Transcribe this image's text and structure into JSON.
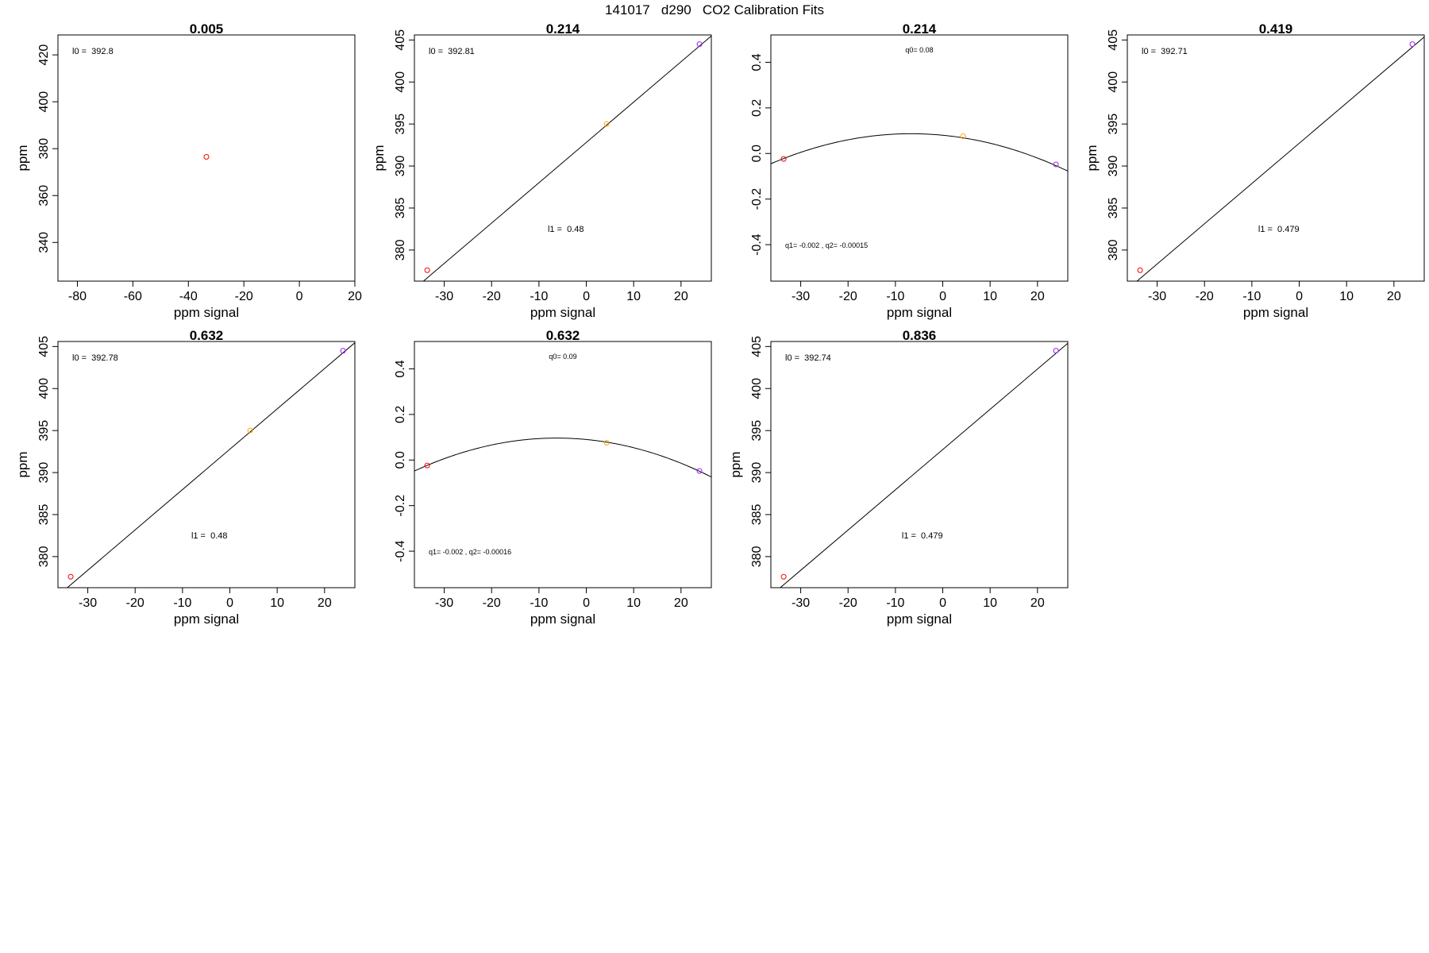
{
  "page_title": "141017   d290   CO2 Calibration Fits",
  "colors": {
    "red": "#ff0000",
    "orange": "#ffa500",
    "purple": "#a020f0",
    "line": "#000000"
  },
  "chart_data": [
    {
      "type": "scatter",
      "title": "0.005",
      "xlabel": "ppm signal",
      "ylabel": "ppm",
      "xlim": [
        -87,
        20
      ],
      "ylim": [
        323.5,
        428.5
      ],
      "xticks": [
        -80,
        -60,
        -40,
        -20,
        0,
        20
      ],
      "yticks": [
        340,
        360,
        380,
        400,
        420
      ],
      "points": [
        {
          "x": -33.5,
          "y": 376.5,
          "color": "red"
        }
      ],
      "fit": null,
      "annotations": [
        {
          "text": "l0 =  392.8",
          "pos": "top-left"
        }
      ]
    },
    {
      "type": "line",
      "title": "0.214",
      "xlabel": "ppm signal",
      "ylabel": "ppm",
      "xlim": [
        -36.3,
        26.4
      ],
      "ylim": [
        376.3,
        405.6
      ],
      "xticks": [
        -30,
        -20,
        -10,
        0,
        10,
        20
      ],
      "yticks": [
        380,
        385,
        390,
        395,
        400,
        405
      ],
      "points": [
        {
          "x": -33.6,
          "y": 377.6,
          "color": "red"
        },
        {
          "x": 4.3,
          "y": 395.0,
          "color": "orange"
        },
        {
          "x": 23.9,
          "y": 404.5,
          "color": "purple"
        }
      ],
      "fit": {
        "kind": "linear",
        "intercept": 392.81,
        "slope": 0.48
      },
      "annotations": [
        {
          "text": "l0 =  392.81",
          "pos": "top-left"
        },
        {
          "text": "l1 =  0.48",
          "pos": "lower-middle"
        }
      ]
    },
    {
      "type": "line",
      "title": "0.214",
      "xlabel": "ppm signal",
      "ylabel": "",
      "xlim": [
        -36.3,
        26.4
      ],
      "ylim": [
        -0.56,
        0.52
      ],
      "xticks": [
        -30,
        -20,
        -10,
        0,
        10,
        20
      ],
      "yticks": [
        -0.4,
        -0.2,
        0.0,
        0.2,
        0.4
      ],
      "ytick_labels": [
        "-0.4",
        "-0.2",
        "0.0",
        "0.2",
        "0.4"
      ],
      "points": [
        {
          "x": -33.6,
          "y": -0.024,
          "color": "red"
        },
        {
          "x": 4.3,
          "y": 0.076,
          "color": "orange"
        },
        {
          "x": 23.9,
          "y": -0.048,
          "color": "purple"
        }
      ],
      "fit": {
        "kind": "quadratic",
        "q0": 0.08,
        "q1": -0.002,
        "q2": -0.00015
      },
      "annotations": [
        {
          "text": "q0= 0.08",
          "pos": "top-middle"
        },
        {
          "text": "q1= -0.002 , q2= -0.00015",
          "pos": "bottom-left"
        }
      ]
    },
    {
      "type": "line",
      "title": "0.419",
      "xlabel": "ppm signal",
      "ylabel": "ppm",
      "xlim": [
        -36.3,
        26.4
      ],
      "ylim": [
        376.3,
        405.6
      ],
      "xticks": [
        -30,
        -20,
        -10,
        0,
        10,
        20
      ],
      "yticks": [
        380,
        385,
        390,
        395,
        400,
        405
      ],
      "points": [
        {
          "x": -33.6,
          "y": 377.6,
          "color": "red"
        },
        {
          "x": 23.9,
          "y": 404.5,
          "color": "purple"
        }
      ],
      "fit": {
        "kind": "linear",
        "intercept": 392.71,
        "slope": 0.479
      },
      "annotations": [
        {
          "text": "l0 =  392.71",
          "pos": "top-left"
        },
        {
          "text": "l1 =  0.479",
          "pos": "lower-middle"
        }
      ]
    },
    {
      "type": "line",
      "title": "0.632",
      "xlabel": "ppm signal",
      "ylabel": "ppm",
      "xlim": [
        -36.3,
        26.4
      ],
      "ylim": [
        376.3,
        405.6
      ],
      "xticks": [
        -30,
        -20,
        -10,
        0,
        10,
        20
      ],
      "yticks": [
        380,
        385,
        390,
        395,
        400,
        405
      ],
      "points": [
        {
          "x": -33.6,
          "y": 377.6,
          "color": "red"
        },
        {
          "x": 4.3,
          "y": 395.0,
          "color": "orange"
        },
        {
          "x": 23.9,
          "y": 404.5,
          "color": "purple"
        }
      ],
      "fit": {
        "kind": "linear",
        "intercept": 392.78,
        "slope": 0.48
      },
      "annotations": [
        {
          "text": "l0 =  392.78",
          "pos": "top-left"
        },
        {
          "text": "l1 =  0.48",
          "pos": "lower-middle"
        }
      ]
    },
    {
      "type": "line",
      "title": "0.632",
      "xlabel": "ppm signal",
      "ylabel": "",
      "xlim": [
        -36.3,
        26.4
      ],
      "ylim": [
        -0.56,
        0.52
      ],
      "xticks": [
        -30,
        -20,
        -10,
        0,
        10,
        20
      ],
      "yticks": [
        -0.4,
        -0.2,
        0.0,
        0.2,
        0.4
      ],
      "ytick_labels": [
        "-0.4",
        "-0.2",
        "0.0",
        "0.2",
        "0.4"
      ],
      "points": [
        {
          "x": -33.6,
          "y": -0.024,
          "color": "red"
        },
        {
          "x": 4.3,
          "y": 0.076,
          "color": "orange"
        },
        {
          "x": 23.9,
          "y": -0.048,
          "color": "purple"
        }
      ],
      "fit": {
        "kind": "quadratic",
        "q0": 0.09,
        "q1": -0.002,
        "q2": -0.00016
      },
      "annotations": [
        {
          "text": "q0= 0.09",
          "pos": "top-middle"
        },
        {
          "text": "q1= -0.002 , q2= -0.00016",
          "pos": "bottom-left"
        }
      ]
    },
    {
      "type": "line",
      "title": "0.836",
      "xlabel": "ppm signal",
      "ylabel": "ppm",
      "xlim": [
        -36.3,
        26.4
      ],
      "ylim": [
        376.3,
        405.6
      ],
      "xticks": [
        -30,
        -20,
        -10,
        0,
        10,
        20
      ],
      "yticks": [
        380,
        385,
        390,
        395,
        400,
        405
      ],
      "points": [
        {
          "x": -33.6,
          "y": 377.6,
          "color": "red"
        },
        {
          "x": 23.9,
          "y": 404.5,
          "color": "purple"
        }
      ],
      "fit": {
        "kind": "linear",
        "intercept": 392.74,
        "slope": 0.479
      },
      "annotations": [
        {
          "text": "l0 =  392.74",
          "pos": "top-left"
        },
        {
          "text": "l1 =  0.479",
          "pos": "lower-middle"
        }
      ]
    }
  ]
}
